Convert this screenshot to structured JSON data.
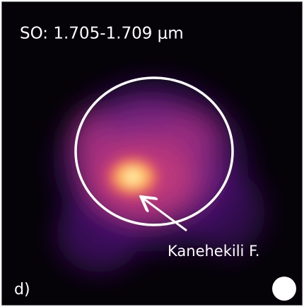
{
  "image": {
    "label": "SO: 1.705-1.709 μm",
    "annotation": "Kanehekili F.",
    "panel_label": "d)"
  }
}
